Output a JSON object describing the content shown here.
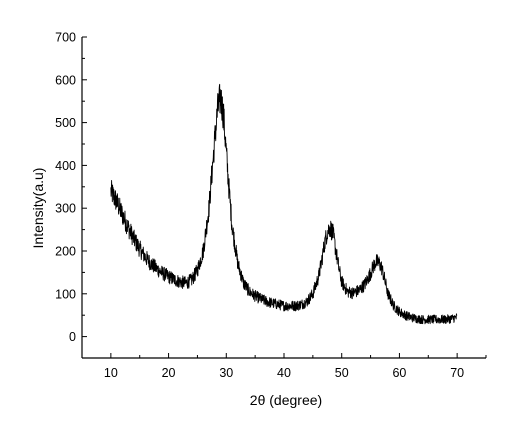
{
  "chart_data": {
    "type": "line",
    "title": "",
    "xlabel": "2θ (degree)",
    "ylabel": "Intensity(a.u)",
    "xlim": [
      5,
      75
    ],
    "ylim": [
      -50,
      700
    ],
    "x_ticks": [
      10,
      20,
      30,
      40,
      50,
      60,
      70
    ],
    "y_ticks": [
      0,
      100,
      200,
      300,
      400,
      500,
      600,
      700
    ],
    "grid": false,
    "legend": "none",
    "line_color": "#000000",
    "series": [
      {
        "x": [
          10,
          11,
          12,
          13,
          14,
          15,
          16,
          17,
          18,
          19,
          20,
          21,
          22,
          23,
          24,
          25,
          26,
          27,
          27.5,
          28,
          28.5,
          29,
          29.5,
          30,
          30.5,
          31,
          32,
          33,
          34,
          35,
          36,
          37,
          38,
          39,
          40,
          41,
          42,
          43,
          44,
          45,
          46,
          46.5,
          47,
          47.5,
          48,
          48.5,
          49,
          49.5,
          50,
          51,
          52,
          53,
          54,
          55,
          55.5,
          56,
          56.5,
          57,
          57.5,
          58,
          59,
          60,
          61,
          62,
          63,
          64,
          65,
          66,
          67,
          68,
          69,
          70
        ],
        "y": [
          340,
          315,
          285,
          255,
          228,
          205,
          185,
          170,
          158,
          148,
          140,
          133,
          128,
          125,
          132,
          155,
          200,
          300,
          380,
          460,
          530,
          560,
          520,
          430,
          340,
          260,
          170,
          125,
          105,
          95,
          88,
          82,
          78,
          75,
          72,
          72,
          72,
          75,
          82,
          100,
          140,
          175,
          215,
          245,
          255,
          240,
          200,
          160,
          128,
          105,
          102,
          108,
          122,
          148,
          165,
          175,
          172,
          158,
          130,
          100,
          72,
          58,
          50,
          45,
          42,
          40,
          40,
          40,
          40,
          40,
          42,
          45
        ]
      }
    ]
  }
}
